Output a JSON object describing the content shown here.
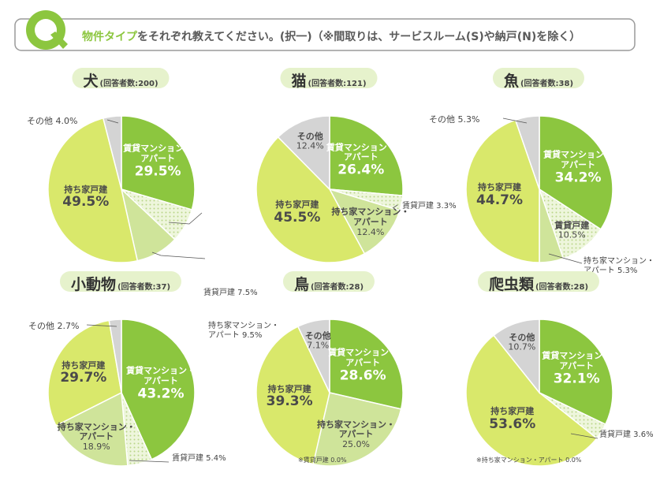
{
  "header": {
    "q_letter": "Q",
    "title_highlight": "物件タイプ",
    "title_rest": "をそれぞれ教えてください。(択一)（※間取りは、サービスルーム(S)や納戸(N)を除く）"
  },
  "colors": {
    "rental_mansion": "#8cc63f",
    "rental_house": "#eef6dc",
    "own_mansion": "#cfe49a",
    "own_house": "#d9e86b",
    "other": "#d4d4d4",
    "pill": "#e6f2cc",
    "accent": "#8cc63f"
  },
  "chart_data": [
    {
      "type": "pie",
      "animal": "犬",
      "count_label": "(回答者数:200)",
      "slices": [
        {
          "name": "賃貸マンション・アパート",
          "label_lines": [
            "賃貸マンション・",
            "アパート"
          ],
          "value": "29.5%",
          "v": 29.5,
          "key": "rental_mansion"
        },
        {
          "name": "賃貸戸建",
          "label_lines": [
            "賃貸戸建"
          ],
          "value": "7.5%",
          "v": 7.5,
          "key": "rental_house"
        },
        {
          "name": "持ち家マンション・アパート",
          "label_lines": [
            "持ち家マンション・",
            "アパート"
          ],
          "value": "9.5%",
          "v": 9.5,
          "key": "own_mansion"
        },
        {
          "name": "持ち家戸建",
          "label_lines": [
            "持ち家戸建"
          ],
          "value": "49.5%",
          "v": 49.5,
          "key": "own_house"
        },
        {
          "name": "その他",
          "label_lines": [
            "その他"
          ],
          "value": "4.0%",
          "v": 4.0,
          "key": "other"
        }
      ]
    },
    {
      "type": "pie",
      "animal": "猫",
      "count_label": "(回答者数:121)",
      "slices": [
        {
          "name": "賃貸マンション・アパート",
          "label_lines": [
            "賃貸マンション・",
            "アパート"
          ],
          "value": "26.4%",
          "v": 26.4,
          "key": "rental_mansion"
        },
        {
          "name": "賃貸戸建",
          "label_lines": [
            "賃貸戸建"
          ],
          "value": "3.3%",
          "v": 3.3,
          "key": "rental_house"
        },
        {
          "name": "持ち家マンション・アパート",
          "label_lines": [
            "持ち家マンション・",
            "アパート"
          ],
          "value": "12.4%",
          "v": 12.4,
          "key": "own_mansion"
        },
        {
          "name": "持ち家戸建",
          "label_lines": [
            "持ち家戸建"
          ],
          "value": "45.5%",
          "v": 45.5,
          "key": "own_house"
        },
        {
          "name": "その他",
          "label_lines": [
            "その他"
          ],
          "value": "12.4%",
          "v": 12.4,
          "key": "other"
        }
      ]
    },
    {
      "type": "pie",
      "animal": "魚",
      "count_label": "(回答者数:38)",
      "slices": [
        {
          "name": "賃貸マンション・アパート",
          "label_lines": [
            "賃貸マンション・",
            "アパート"
          ],
          "value": "34.2%",
          "v": 34.2,
          "key": "rental_mansion"
        },
        {
          "name": "賃貸戸建",
          "label_lines": [
            "賃貸戸建"
          ],
          "value": "10.5%",
          "v": 10.5,
          "key": "rental_house"
        },
        {
          "name": "持ち家マンション・アパート",
          "label_lines": [
            "持ち家マンション・",
            "アパート"
          ],
          "value": "5.3%",
          "v": 5.3,
          "key": "own_mansion"
        },
        {
          "name": "持ち家戸建",
          "label_lines": [
            "持ち家戸建"
          ],
          "value": "44.7%",
          "v": 44.7,
          "key": "own_house"
        },
        {
          "name": "その他",
          "label_lines": [
            "その他"
          ],
          "value": "5.3%",
          "v": 5.3,
          "key": "other"
        }
      ]
    },
    {
      "type": "pie",
      "animal": "小動物",
      "count_label": "(回答者数:37)",
      "slices": [
        {
          "name": "賃貸マンション・アパート",
          "label_lines": [
            "賃貸マンション・",
            "アパート"
          ],
          "value": "43.2%",
          "v": 43.2,
          "key": "rental_mansion"
        },
        {
          "name": "賃貸戸建",
          "label_lines": [
            "賃貸戸建"
          ],
          "value": "5.4%",
          "v": 5.4,
          "key": "rental_house"
        },
        {
          "name": "持ち家マンション・アパート",
          "label_lines": [
            "持ち家マンション・",
            "アパート"
          ],
          "value": "18.9%",
          "v": 18.9,
          "key": "own_mansion"
        },
        {
          "name": "持ち家戸建",
          "label_lines": [
            "持ち家戸建"
          ],
          "value": "29.7%",
          "v": 29.7,
          "key": "own_house"
        },
        {
          "name": "その他",
          "label_lines": [
            "その他"
          ],
          "value": "2.7%",
          "v": 2.7,
          "key": "other"
        }
      ]
    },
    {
      "type": "pie",
      "animal": "鳥",
      "count_label": "(回答者数:28)",
      "note": "※賃貸戸建 0.0%",
      "slices": [
        {
          "name": "賃貸マンション・アパート",
          "label_lines": [
            "賃貸マンション・",
            "アパート"
          ],
          "value": "28.6%",
          "v": 28.6,
          "key": "rental_mansion"
        },
        {
          "name": "持ち家マンション・アパート",
          "label_lines": [
            "持ち家マンション・",
            "アパート"
          ],
          "value": "25.0%",
          "v": 25.0,
          "key": "own_mansion"
        },
        {
          "name": "持ち家戸建",
          "label_lines": [
            "持ち家戸建"
          ],
          "value": "39.3%",
          "v": 39.3,
          "key": "own_house"
        },
        {
          "name": "その他",
          "label_lines": [
            "その他"
          ],
          "value": "7.1%",
          "v": 7.1,
          "key": "other"
        }
      ]
    },
    {
      "type": "pie",
      "animal": "爬虫類",
      "count_label": "(回答者数:28)",
      "note": "※持ち家マンション・アパート 0.0%",
      "slices": [
        {
          "name": "賃貸マンション・アパート",
          "label_lines": [
            "賃貸マンション・",
            "アパート"
          ],
          "value": "32.1%",
          "v": 32.1,
          "key": "rental_mansion"
        },
        {
          "name": "賃貸戸建",
          "label_lines": [
            "賃貸戸建"
          ],
          "value": "3.6%",
          "v": 3.6,
          "key": "rental_house"
        },
        {
          "name": "持ち家戸建",
          "label_lines": [
            "持ち家戸建"
          ],
          "value": "53.6%",
          "v": 53.6,
          "key": "own_house"
        },
        {
          "name": "その他",
          "label_lines": [
            "その他"
          ],
          "value": "10.7%",
          "v": 10.7,
          "key": "other"
        }
      ]
    }
  ]
}
